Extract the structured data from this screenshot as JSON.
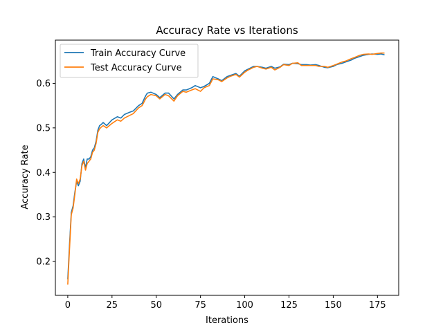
{
  "chart_data": {
    "type": "line",
    "title": "Accuracy Rate vs Iterations",
    "xlabel": "Iterations",
    "ylabel": "Accuracy Rate",
    "xlim": [
      -7,
      187
    ],
    "ylim": [
      0.124,
      0.697
    ],
    "xticks": [
      0,
      25,
      50,
      75,
      100,
      125,
      150,
      175
    ],
    "yticks": [
      0.2,
      0.3,
      0.4,
      0.5,
      0.6
    ],
    "ytick_labels": [
      "0.2",
      "0.3",
      "0.4",
      "0.5",
      "0.6"
    ],
    "grid": false,
    "legend_position": "top-left",
    "series": [
      {
        "name": "Train Accuracy Curve",
        "color": "#1f77b4",
        "x": [
          0,
          1,
          2,
          3,
          4,
          5,
          6,
          7,
          8,
          9,
          10,
          11,
          12,
          13,
          14,
          15,
          16,
          17,
          18,
          19,
          20,
          22,
          25,
          28,
          30,
          32,
          35,
          37,
          40,
          42,
          44,
          45,
          47,
          50,
          52,
          55,
          57,
          60,
          62,
          65,
          67,
          70,
          72,
          75,
          77,
          80,
          82,
          85,
          87,
          90,
          92,
          95,
          97,
          100,
          102,
          105,
          107,
          110,
          112,
          115,
          117,
          120,
          122,
          125,
          127,
          130,
          132,
          135,
          137,
          140,
          142,
          145,
          147,
          150,
          152,
          155,
          157,
          160,
          162,
          165,
          167,
          170,
          172,
          175,
          177,
          179
        ],
        "values": [
          0.16,
          0.24,
          0.31,
          0.325,
          0.355,
          0.38,
          0.37,
          0.38,
          0.42,
          0.43,
          0.41,
          0.43,
          0.43,
          0.435,
          0.45,
          0.455,
          0.47,
          0.495,
          0.505,
          0.508,
          0.512,
          0.505,
          0.518,
          0.525,
          0.522,
          0.53,
          0.535,
          0.538,
          0.55,
          0.555,
          0.572,
          0.578,
          0.58,
          0.575,
          0.568,
          0.578,
          0.578,
          0.565,
          0.575,
          0.585,
          0.585,
          0.59,
          0.595,
          0.59,
          0.593,
          0.6,
          0.615,
          0.61,
          0.606,
          0.615,
          0.618,
          0.622,
          0.616,
          0.628,
          0.632,
          0.638,
          0.638,
          0.636,
          0.634,
          0.638,
          0.634,
          0.637,
          0.643,
          0.642,
          0.645,
          0.644,
          0.642,
          0.642,
          0.641,
          0.642,
          0.64,
          0.636,
          0.635,
          0.638,
          0.642,
          0.645,
          0.648,
          0.652,
          0.656,
          0.66,
          0.663,
          0.665,
          0.666,
          0.665,
          0.666,
          0.664
        ]
      },
      {
        "name": "Test Accuracy Curve",
        "color": "#ff7f0e",
        "x": [
          0,
          1,
          2,
          3,
          4,
          5,
          6,
          7,
          8,
          9,
          10,
          11,
          12,
          13,
          14,
          15,
          16,
          17,
          18,
          19,
          20,
          22,
          25,
          28,
          30,
          32,
          35,
          37,
          40,
          42,
          44,
          45,
          47,
          50,
          52,
          55,
          57,
          60,
          62,
          65,
          67,
          70,
          72,
          75,
          77,
          80,
          82,
          85,
          87,
          90,
          92,
          95,
          97,
          100,
          102,
          105,
          107,
          110,
          112,
          115,
          117,
          120,
          122,
          125,
          127,
          130,
          132,
          135,
          137,
          140,
          142,
          145,
          147,
          150,
          152,
          155,
          157,
          160,
          162,
          165,
          167,
          170,
          172,
          175,
          177,
          179
        ],
        "values": [
          0.148,
          0.23,
          0.305,
          0.32,
          0.35,
          0.385,
          0.375,
          0.385,
          0.415,
          0.425,
          0.405,
          0.42,
          0.425,
          0.43,
          0.445,
          0.45,
          0.465,
          0.49,
          0.498,
          0.502,
          0.505,
          0.5,
          0.51,
          0.518,
          0.515,
          0.522,
          0.528,
          0.532,
          0.545,
          0.55,
          0.565,
          0.57,
          0.575,
          0.572,
          0.565,
          0.575,
          0.572,
          0.56,
          0.572,
          0.582,
          0.58,
          0.585,
          0.588,
          0.582,
          0.59,
          0.595,
          0.61,
          0.608,
          0.604,
          0.612,
          0.616,
          0.62,
          0.614,
          0.625,
          0.63,
          0.636,
          0.638,
          0.634,
          0.632,
          0.636,
          0.63,
          0.636,
          0.642,
          0.64,
          0.645,
          0.646,
          0.64,
          0.64,
          0.64,
          0.64,
          0.638,
          0.638,
          0.636,
          0.64,
          0.643,
          0.648,
          0.65,
          0.655,
          0.658,
          0.663,
          0.665,
          0.666,
          0.665,
          0.667,
          0.668,
          0.668
        ]
      }
    ]
  }
}
